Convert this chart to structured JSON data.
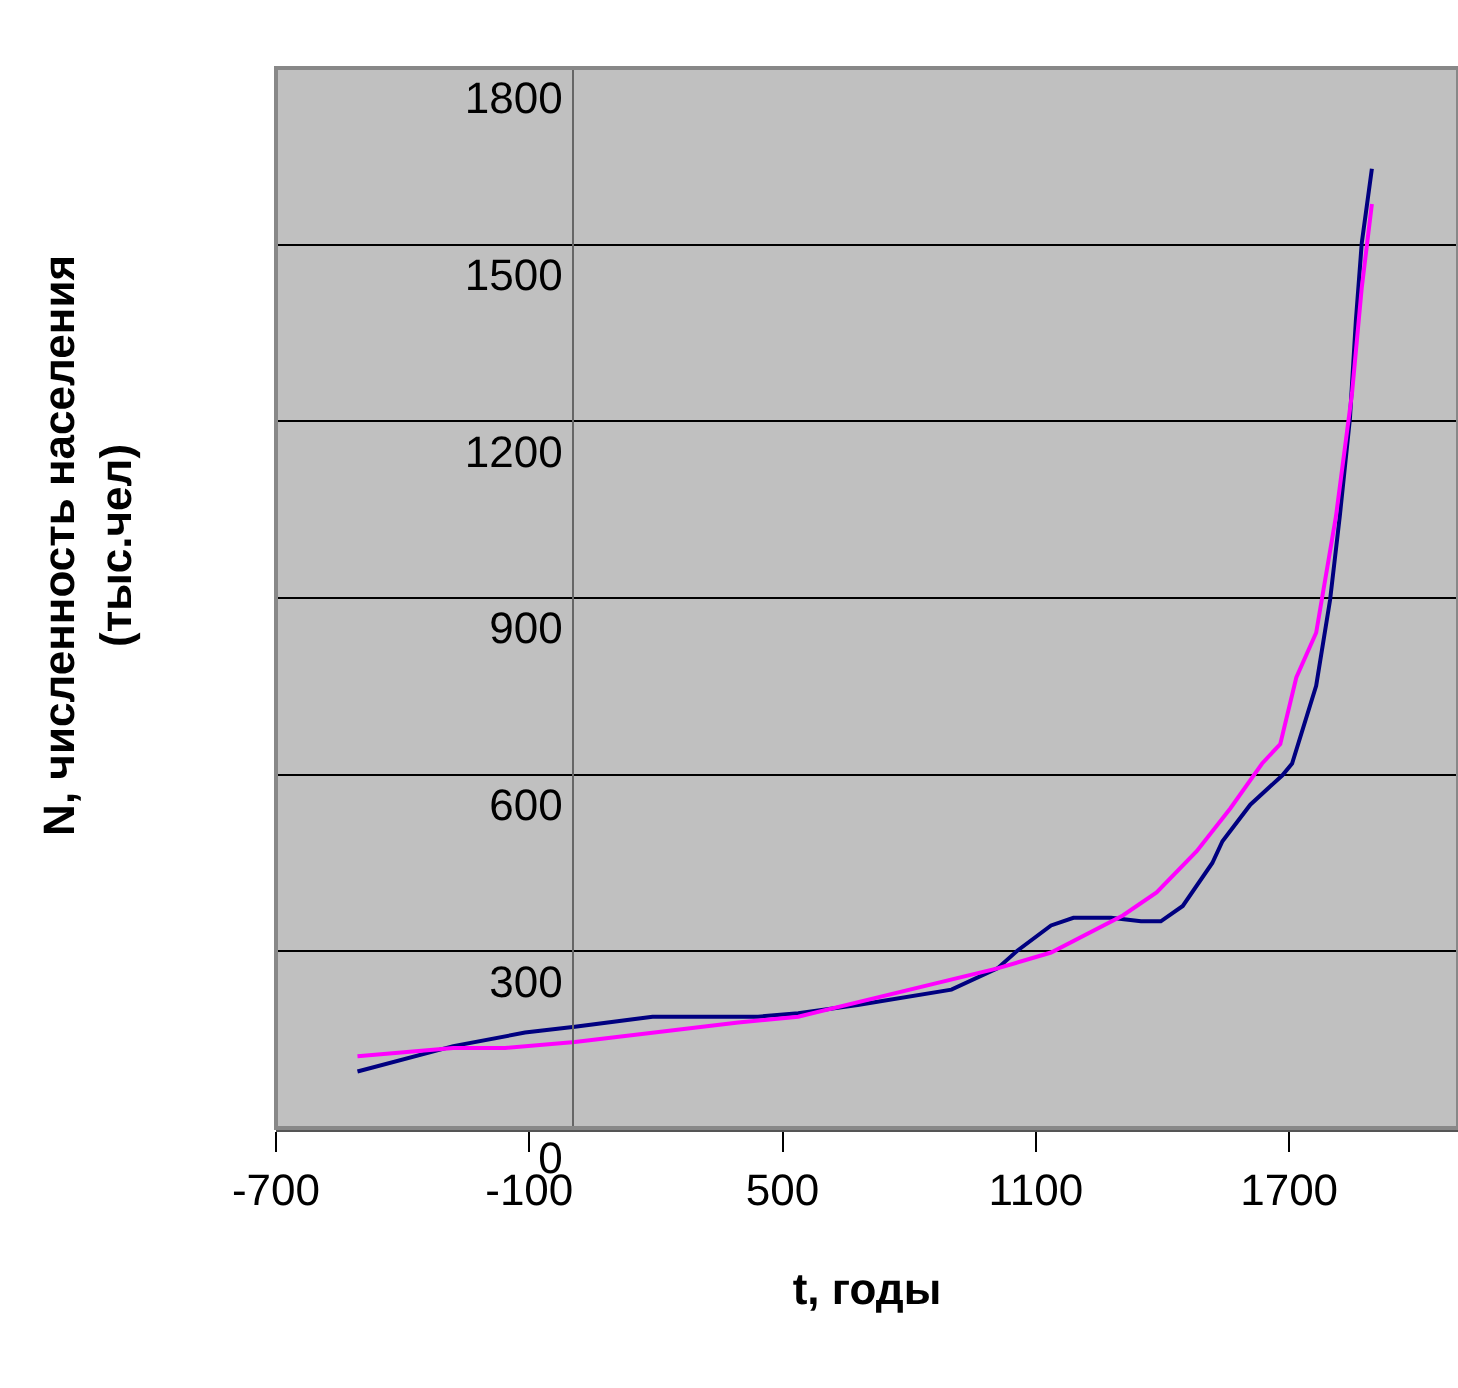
{
  "chart_data": {
    "type": "line",
    "xlabel": "t, годы",
    "ylabel": "N, численность населения (тыс.чел)",
    "xlim": [
      -700,
      2100
    ],
    "xticks": [
      -700,
      -100,
      500,
      1100,
      1700
    ],
    "ylim": [
      0,
      1800
    ],
    "yticks": [
      0,
      300,
      600,
      900,
      1200,
      1500,
      1800
    ],
    "grid": "y",
    "series": [
      {
        "color": "#000080",
        "x": [
          -507,
          -280,
          -110,
          8,
          192,
          442,
          537,
          678,
          900,
          1009,
          1056,
          1136,
          1189,
          1278,
          1349,
          1396,
          1448,
          1518,
          1542,
          1608,
          1684,
          1707,
          1764,
          1797,
          1820,
          1844,
          1858,
          1872,
          1896
        ],
        "values": [
          96,
          139,
          162,
          172,
          189,
          189,
          195,
          209,
          235,
          271,
          301,
          344,
          357,
          357,
          351,
          351,
          377,
          450,
          487,
          549,
          599,
          619,
          751,
          897,
          1039,
          1205,
          1370,
          1503,
          1629
        ]
      },
      {
        "color": "#ff00ff",
        "x": [
          -507,
          -280,
          -157,
          8,
          395,
          537,
          1009,
          1136,
          1306,
          1386,
          1481,
          1561,
          1636,
          1679,
          1717,
          1764,
          1811,
          1849,
          1872,
          1896
        ],
        "values": [
          122,
          136,
          136,
          146,
          179,
          189,
          271,
          298,
          361,
          400,
          470,
          543,
          619,
          652,
          765,
          841,
          1039,
          1248,
          1427,
          1569
        ]
      }
    ]
  }
}
